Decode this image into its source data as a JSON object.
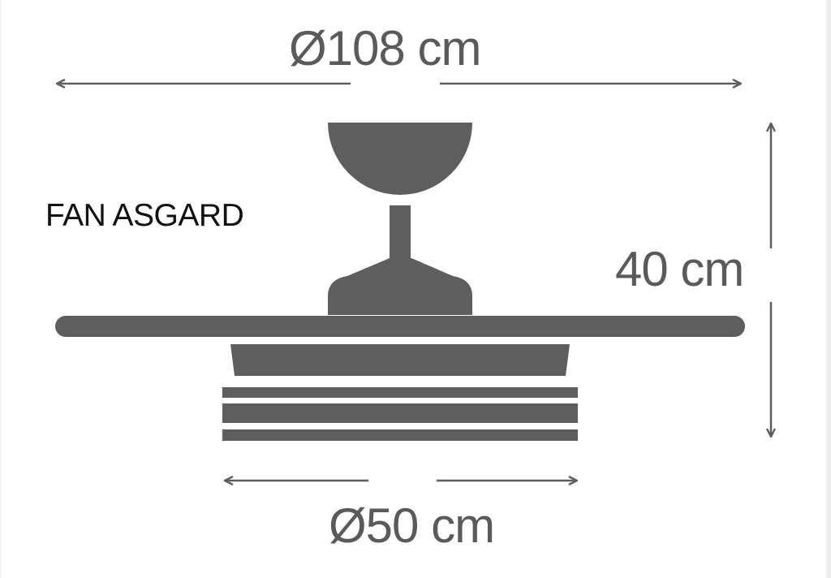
{
  "title": "FAN ASGARD",
  "dimensions": {
    "blade_diameter": "Ø108 cm",
    "height": "40 cm",
    "body_diameter": "Ø50 cm"
  },
  "colors": {
    "drawing": "#5e5e5e",
    "dimension_text": "#5a5a5a",
    "title_text": "#111111",
    "background": "#ffffff"
  }
}
